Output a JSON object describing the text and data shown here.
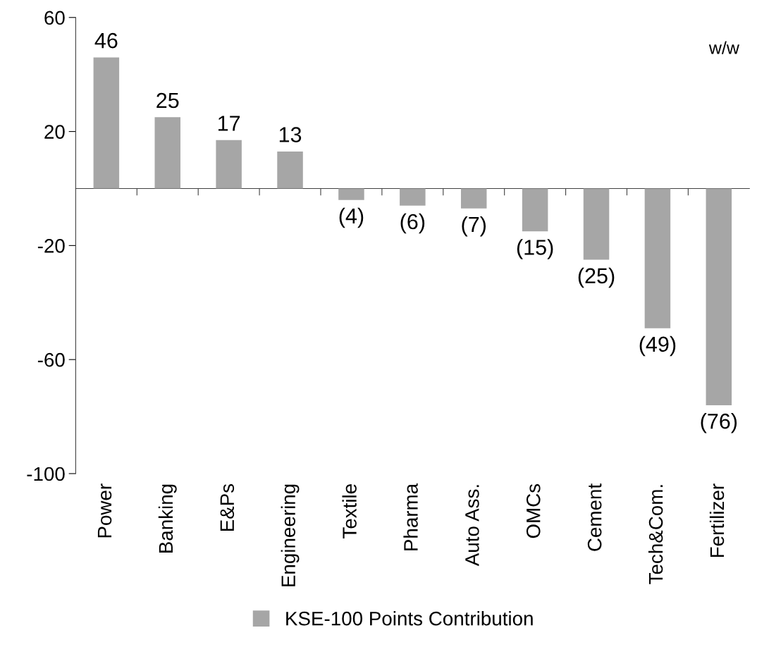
{
  "chart_data": {
    "type": "bar",
    "categories": [
      "Power",
      "Banking",
      "E&Ps",
      "Engineering",
      "Textile",
      "Pharma",
      "Auto Ass.",
      "OMCs",
      "Cement",
      "Tech&Com.",
      "Fertilizer"
    ],
    "series": [
      {
        "name": "KSE-100 Points Contribution",
        "color": "#a6a6a6",
        "values": [
          46,
          25,
          17,
          13,
          -4,
          -6,
          -7,
          -15,
          -25,
          -49,
          -76
        ],
        "value_labels": [
          "46",
          "25",
          "17",
          "13",
          "(4)",
          "(6)",
          "(7)",
          "(15)",
          "(25)",
          "(49)",
          "(76)"
        ]
      }
    ],
    "ylim": [
      -100,
      60
    ],
    "yticks": [
      60,
      20,
      -20,
      -60,
      -100
    ],
    "annotations": [
      "w/w"
    ],
    "legend": "bottom",
    "grid": false
  }
}
